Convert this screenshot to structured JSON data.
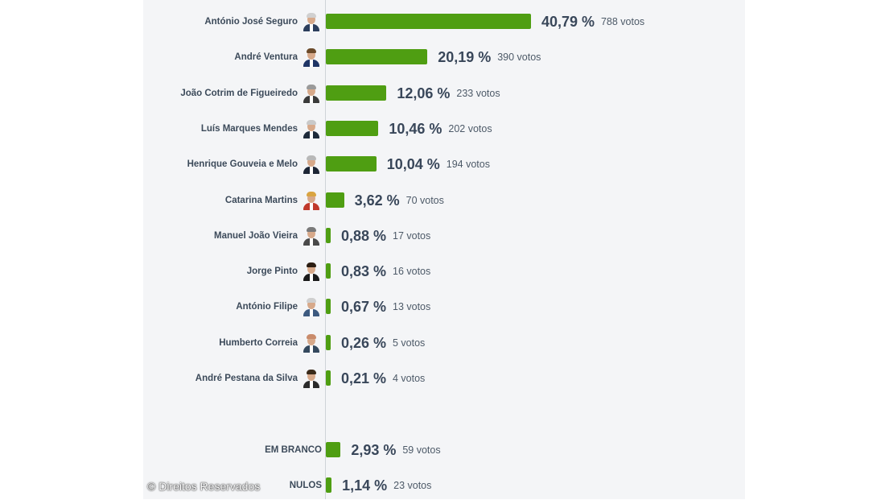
{
  "chart_data": {
    "type": "bar",
    "orientation": "horizontal",
    "unit": "%",
    "bar_color": "#4f9e12",
    "candidates": [
      {
        "name": "António José Seguro",
        "pct": 40.79,
        "pct_label": "40,79 %",
        "votes_label": "788 votos",
        "photo": "portrait-icon",
        "suit": "#2c3e5c",
        "hair": "#d0d0d0"
      },
      {
        "name": "André Ventura",
        "pct": 20.19,
        "pct_label": "20,19 %",
        "votes_label": "390 votos",
        "photo": "portrait-icon",
        "suit": "#1f3566",
        "hair": "#6b4a2a"
      },
      {
        "name": "João Cotrim de Figueiredo",
        "pct": 12.06,
        "pct_label": "12,06 %",
        "votes_label": "233 votos",
        "photo": "portrait-icon",
        "suit": "#3a3a3a",
        "hair": "#9a9a9a"
      },
      {
        "name": "Luís Marques Mendes",
        "pct": 10.46,
        "pct_label": "10,46 %",
        "votes_label": "202 votos",
        "photo": "portrait-icon",
        "suit": "#1e2a3a",
        "hair": "#c9c9c9"
      },
      {
        "name": "Henrique Gouveia e Melo",
        "pct": 10.04,
        "pct_label": "10,04 %",
        "votes_label": "194 votos",
        "photo": "portrait-icon",
        "suit": "#1c2535",
        "hair": "#b8b8b8"
      },
      {
        "name": "Catarina Martins",
        "pct": 3.62,
        "pct_label": "3,62 %",
        "votes_label": "70 votos",
        "photo": "portrait-icon",
        "suit": "#c0392b",
        "hair": "#d9a441"
      },
      {
        "name": "Manuel João Vieira",
        "pct": 0.88,
        "pct_label": "0,88 %",
        "votes_label": "17 votos",
        "photo": "portrait-icon",
        "suit": "#4a4a4a",
        "hair": "#7a7a7a"
      },
      {
        "name": "Jorge Pinto",
        "pct": 0.83,
        "pct_label": "0,83 %",
        "votes_label": "16 votos",
        "photo": "portrait-icon",
        "suit": "#1a1a1a",
        "hair": "#2b1d12"
      },
      {
        "name": "António Filipe",
        "pct": 0.67,
        "pct_label": "0,67 %",
        "votes_label": "13 votos",
        "photo": "portrait-icon",
        "suit": "#3d5a80",
        "hair": "#cfcfcf"
      },
      {
        "name": "Humberto Correia",
        "pct": 0.26,
        "pct_label": "0,26 %",
        "votes_label": "5 votos",
        "photo": "portrait-icon",
        "suit": "#34495e",
        "hair": "#c98b6b"
      },
      {
        "name": "André Pestana da Silva",
        "pct": 0.21,
        "pct_label": "0,21 %",
        "votes_label": "4 votos",
        "photo": "portrait-icon",
        "suit": "#2b2b2b",
        "hair": "#3a2a1a"
      }
    ],
    "others": [
      {
        "name": "EM BRANCO",
        "pct": 2.93,
        "pct_label": "2,93 %",
        "votes_label": "59 votos"
      },
      {
        "name": "NULOS",
        "pct": 1.14,
        "pct_label": "1,14 %",
        "votes_label": "23 votos"
      }
    ]
  },
  "watermark": "© Direitos Reservados"
}
